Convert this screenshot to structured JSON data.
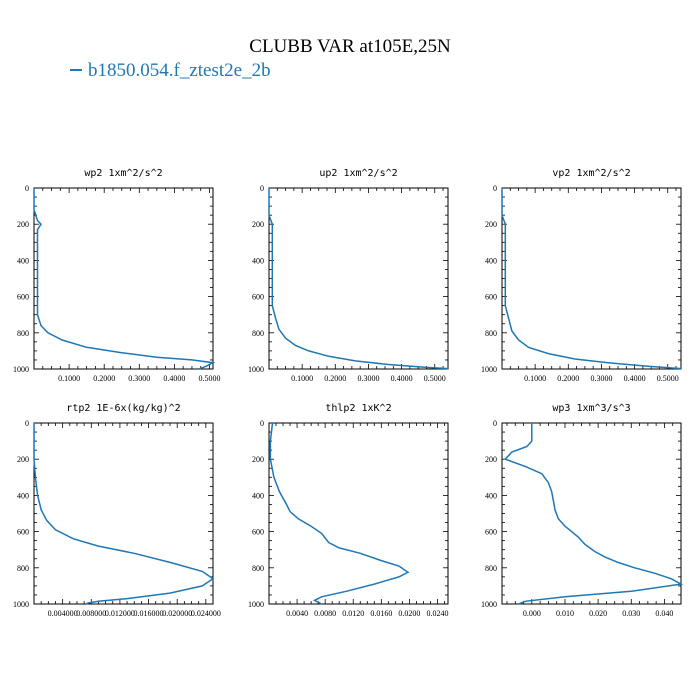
{
  "title": "CLUBB VAR at105E,25N",
  "legend": {
    "label": "b1850.054.f_ztest2e_2b",
    "color": "#1f77b4"
  },
  "chart_data": [
    {
      "type": "line",
      "title": "wp2  1xm^2/s^2",
      "xlim": [
        0.0,
        0.51
      ],
      "ylim": [
        1000,
        0
      ],
      "xticks": [
        0.1,
        0.2,
        0.3,
        0.4,
        0.5
      ],
      "xtick_labels": [
        "0.1000",
        "0.2000",
        "0.3000",
        "0.4000",
        "0.5000"
      ],
      "yticks": [
        0,
        200,
        400,
        600,
        800,
        1000
      ],
      "ytick_labels": [
        "0",
        "200",
        "400",
        "600",
        "800",
        "1000"
      ],
      "series": [
        {
          "x": [
            0.0,
            0.0,
            0.01,
            0.02,
            0.01,
            0.01,
            0.01,
            0.01,
            0.01,
            0.02,
            0.04,
            0.08,
            0.15,
            0.25,
            0.35,
            0.45,
            0.51,
            0.49,
            0.47
          ],
          "y": [
            0,
            120,
            180,
            200,
            230,
            300,
            500,
            650,
            700,
            760,
            800,
            840,
            880,
            910,
            935,
            950,
            965,
            985,
            1000
          ]
        }
      ]
    },
    {
      "type": "line",
      "title": "up2  1xm^2/s^2",
      "xlim": [
        0.0,
        0.54
      ],
      "ylim": [
        1000,
        0
      ],
      "xticks": [
        0.1,
        0.2,
        0.3,
        0.4,
        0.5
      ],
      "xtick_labels": [
        "0.1000",
        "0.2000",
        "0.3000",
        "0.4000",
        "0.5000"
      ],
      "yticks": [
        0,
        200,
        400,
        600,
        800,
        1000
      ],
      "ytick_labels": [
        "0",
        "200",
        "400",
        "600",
        "800",
        "1000"
      ],
      "series": [
        {
          "x": [
            0.0,
            0.0,
            0.01,
            0.01,
            0.01,
            0.01,
            0.01,
            0.02,
            0.03,
            0.05,
            0.08,
            0.12,
            0.18,
            0.26,
            0.36,
            0.47,
            0.54
          ],
          "y": [
            0,
            150,
            200,
            260,
            300,
            500,
            650,
            720,
            780,
            830,
            870,
            900,
            930,
            955,
            975,
            990,
            998
          ]
        }
      ]
    },
    {
      "type": "line",
      "title": "vp2  1xm^2/s^2",
      "xlim": [
        0.0,
        0.54
      ],
      "ylim": [
        1000,
        0
      ],
      "xticks": [
        0.1,
        0.2,
        0.3,
        0.4,
        0.5
      ],
      "xtick_labels": [
        "0.1000",
        "0.2000",
        "0.3000",
        "0.4000",
        "0.5000"
      ],
      "yticks": [
        0,
        200,
        400,
        600,
        800,
        1000
      ],
      "ytick_labels": [
        "0",
        "200",
        "400",
        "600",
        "800",
        "1000"
      ],
      "series": [
        {
          "x": [
            0.0,
            0.0,
            0.01,
            0.01,
            0.01,
            0.01,
            0.01,
            0.02,
            0.03,
            0.05,
            0.08,
            0.14,
            0.22,
            0.32,
            0.44,
            0.54
          ],
          "y": [
            0,
            150,
            200,
            250,
            300,
            500,
            650,
            720,
            790,
            840,
            880,
            915,
            945,
            965,
            985,
            998
          ]
        }
      ]
    },
    {
      "type": "line",
      "title": "rtp2  1E-6x(kg/kg)^2",
      "xlim": [
        0.0,
        0.025
      ],
      "ylim": [
        1000,
        0
      ],
      "xticks": [
        0.004,
        0.008,
        0.012,
        0.016,
        0.02,
        0.024
      ],
      "xtick_labels": [
        "0.004000",
        "0.008000",
        "0.012000",
        "0.016000",
        "0.020000",
        "0.024000"
      ],
      "yticks": [
        0,
        200,
        400,
        600,
        800,
        1000
      ],
      "ytick_labels": [
        "0",
        "200",
        "400",
        "600",
        "800",
        "1000"
      ],
      "series": [
        {
          "x": [
            0.0,
            0.0,
            0.0002,
            0.0005,
            0.001,
            0.0018,
            0.003,
            0.0055,
            0.009,
            0.014,
            0.019,
            0.0235,
            0.025,
            0.0235,
            0.019,
            0.013,
            0.009,
            0.0075,
            0.0073
          ],
          "y": [
            0,
            200,
            300,
            400,
            480,
            540,
            590,
            640,
            680,
            720,
            770,
            820,
            860,
            900,
            940,
            970,
            985,
            995,
            1000
          ]
        }
      ]
    },
    {
      "type": "line",
      "title": "thlp2  1xK^2",
      "xlim": [
        0.0,
        0.0255
      ],
      "ylim": [
        1000,
        0
      ],
      "xticks": [
        0.004,
        0.008,
        0.012,
        0.016,
        0.02,
        0.024
      ],
      "xtick_labels": [
        "0.0040",
        "0.0080",
        "0.0120",
        "0.0160",
        "0.0200",
        "0.0240"
      ],
      "yticks": [
        0,
        200,
        400,
        600,
        800,
        1000
      ],
      "ytick_labels": [
        "0",
        "200",
        "400",
        "600",
        "800",
        "1000"
      ],
      "series": [
        {
          "x": [
            0.0005,
            0.0002,
            0.0002,
            0.0007,
            0.0015,
            0.0025,
            0.003,
            0.0042,
            0.006,
            0.0075,
            0.0085,
            0.01,
            0.013,
            0.016,
            0.0185,
            0.0198,
            0.0185,
            0.015,
            0.011,
            0.0075,
            0.0065,
            0.0075
          ],
          "y": [
            0,
            100,
            200,
            300,
            380,
            450,
            490,
            530,
            570,
            610,
            660,
            690,
            720,
            760,
            790,
            825,
            850,
            890,
            930,
            960,
            980,
            1000
          ]
        }
      ]
    },
    {
      "type": "line",
      "title": "wp3  1xm^3/s^3",
      "xlim": [
        -0.009,
        0.045
      ],
      "ylim": [
        1000,
        0
      ],
      "xticks": [
        0.0,
        0.01,
        0.02,
        0.03,
        0.04
      ],
      "xtick_labels": [
        "0.000",
        "0.010",
        "0.020",
        "0.030",
        "0.040"
      ],
      "yticks": [
        0,
        200,
        400,
        600,
        800,
        1000
      ],
      "ytick_labels": [
        "0",
        "200",
        "400",
        "600",
        "800",
        "1000"
      ],
      "series": [
        {
          "x": [
            0.0,
            0.0,
            -0.0015,
            -0.006,
            -0.008,
            -0.002,
            0.003,
            0.005,
            0.006,
            0.0065,
            0.007,
            0.008,
            0.01,
            0.012,
            0.014,
            0.016,
            0.019,
            0.022,
            0.026,
            0.031,
            0.037,
            0.042,
            0.045,
            0.03,
            0.01,
            -0.002,
            -0.004
          ],
          "y": [
            0,
            100,
            130,
            160,
            200,
            240,
            280,
            330,
            380,
            430,
            480,
            530,
            570,
            600,
            630,
            670,
            710,
            740,
            770,
            800,
            830,
            860,
            890,
            930,
            960,
            985,
            1000
          ]
        }
      ]
    }
  ]
}
